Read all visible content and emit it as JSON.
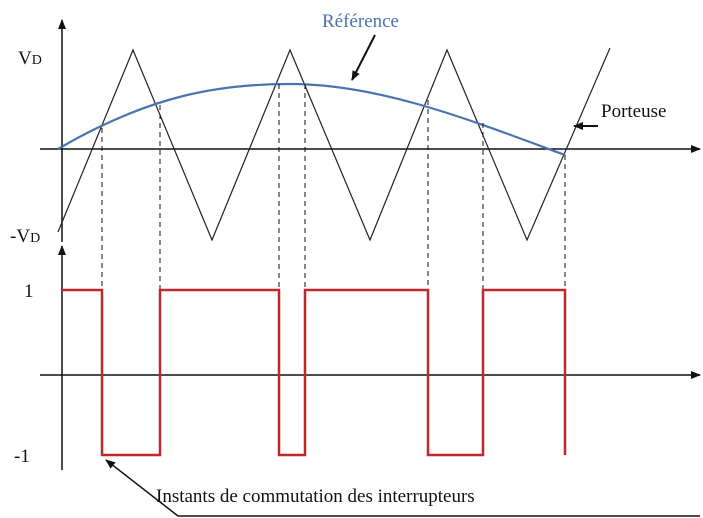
{
  "labels": {
    "reference": "Référence",
    "carrier": "Porteuse",
    "vd_top": {
      "main": "V",
      "sub": "D"
    },
    "vd_bottom": {
      "main": "-V",
      "sub": "D"
    },
    "one": "1",
    "minus_one": "-1",
    "caption": "Instants de commutation des interrupteurs"
  }
}
